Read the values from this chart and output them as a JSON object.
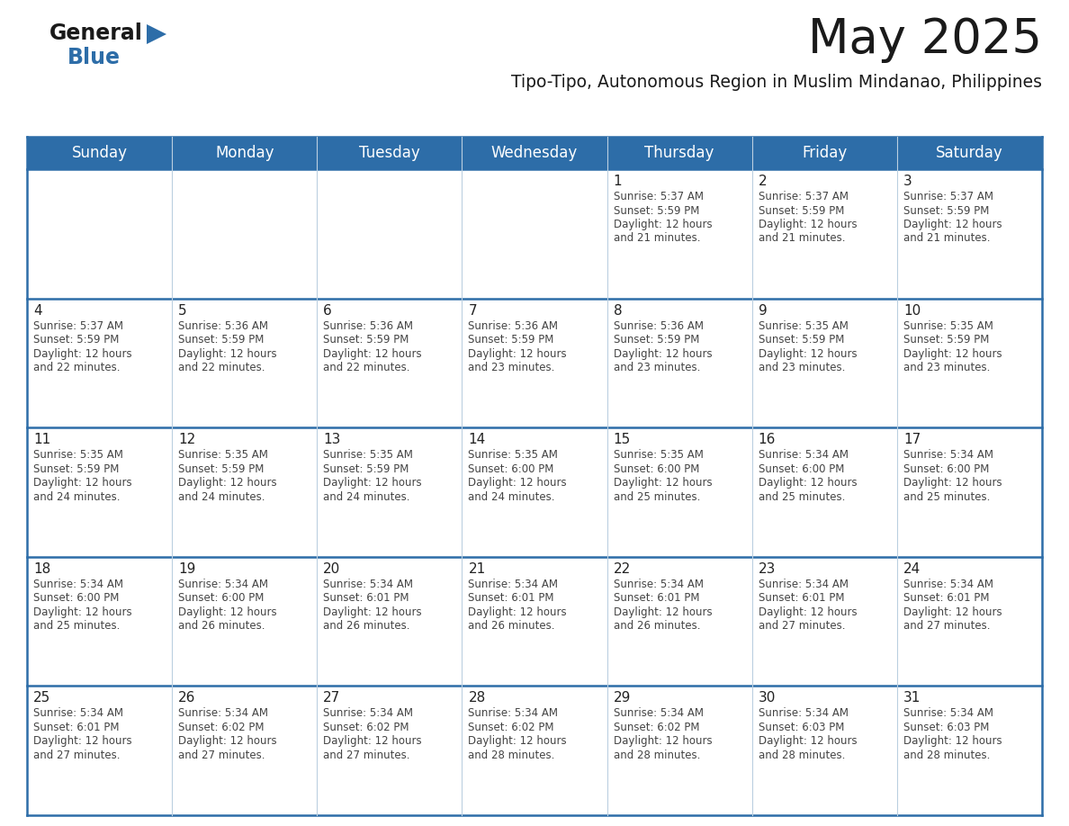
{
  "title": "May 2025",
  "subtitle": "Tipo-Tipo, Autonomous Region in Muslim Mindanao, Philippines",
  "days_of_week": [
    "Sunday",
    "Monday",
    "Tuesday",
    "Wednesday",
    "Thursday",
    "Friday",
    "Saturday"
  ],
  "header_bg_color": "#2D6DA8",
  "header_text_color": "#FFFFFF",
  "cell_bg_color": "#FFFFFF",
  "cell_bg_alt": "#F2F6FA",
  "day_number_color": "#222222",
  "info_text_color": "#444444",
  "border_color": "#2D6DA8",
  "grid_color": "#BBCFE0",
  "title_color": "#1a1a1a",
  "subtitle_color": "#1a1a1a",
  "logo_general_color": "#1a1a1a",
  "logo_blue_color": "#2D6DA8",
  "logo_triangle_color": "#2D6DA8",
  "calendar_data": [
    [
      {
        "day": "",
        "sunrise": "",
        "sunset": "",
        "daylight": ""
      },
      {
        "day": "",
        "sunrise": "",
        "sunset": "",
        "daylight": ""
      },
      {
        "day": "",
        "sunrise": "",
        "sunset": "",
        "daylight": ""
      },
      {
        "day": "",
        "sunrise": "",
        "sunset": "",
        "daylight": ""
      },
      {
        "day": "1",
        "sunrise": "5:37 AM",
        "sunset": "5:59 PM",
        "daylight": "12 hours and 21 minutes"
      },
      {
        "day": "2",
        "sunrise": "5:37 AM",
        "sunset": "5:59 PM",
        "daylight": "12 hours and 21 minutes"
      },
      {
        "day": "3",
        "sunrise": "5:37 AM",
        "sunset": "5:59 PM",
        "daylight": "12 hours and 21 minutes"
      }
    ],
    [
      {
        "day": "4",
        "sunrise": "5:37 AM",
        "sunset": "5:59 PM",
        "daylight": "12 hours and 22 minutes"
      },
      {
        "day": "5",
        "sunrise": "5:36 AM",
        "sunset": "5:59 PM",
        "daylight": "12 hours and 22 minutes"
      },
      {
        "day": "6",
        "sunrise": "5:36 AM",
        "sunset": "5:59 PM",
        "daylight": "12 hours and 22 minutes"
      },
      {
        "day": "7",
        "sunrise": "5:36 AM",
        "sunset": "5:59 PM",
        "daylight": "12 hours and 23 minutes"
      },
      {
        "day": "8",
        "sunrise": "5:36 AM",
        "sunset": "5:59 PM",
        "daylight": "12 hours and 23 minutes"
      },
      {
        "day": "9",
        "sunrise": "5:35 AM",
        "sunset": "5:59 PM",
        "daylight": "12 hours and 23 minutes"
      },
      {
        "day": "10",
        "sunrise": "5:35 AM",
        "sunset": "5:59 PM",
        "daylight": "12 hours and 23 minutes"
      }
    ],
    [
      {
        "day": "11",
        "sunrise": "5:35 AM",
        "sunset": "5:59 PM",
        "daylight": "12 hours and 24 minutes"
      },
      {
        "day": "12",
        "sunrise": "5:35 AM",
        "sunset": "5:59 PM",
        "daylight": "12 hours and 24 minutes"
      },
      {
        "day": "13",
        "sunrise": "5:35 AM",
        "sunset": "5:59 PM",
        "daylight": "12 hours and 24 minutes"
      },
      {
        "day": "14",
        "sunrise": "5:35 AM",
        "sunset": "6:00 PM",
        "daylight": "12 hours and 24 minutes"
      },
      {
        "day": "15",
        "sunrise": "5:35 AM",
        "sunset": "6:00 PM",
        "daylight": "12 hours and 25 minutes"
      },
      {
        "day": "16",
        "sunrise": "5:34 AM",
        "sunset": "6:00 PM",
        "daylight": "12 hours and 25 minutes"
      },
      {
        "day": "17",
        "sunrise": "5:34 AM",
        "sunset": "6:00 PM",
        "daylight": "12 hours and 25 minutes"
      }
    ],
    [
      {
        "day": "18",
        "sunrise": "5:34 AM",
        "sunset": "6:00 PM",
        "daylight": "12 hours and 25 minutes"
      },
      {
        "day": "19",
        "sunrise": "5:34 AM",
        "sunset": "6:00 PM",
        "daylight": "12 hours and 26 minutes"
      },
      {
        "day": "20",
        "sunrise": "5:34 AM",
        "sunset": "6:01 PM",
        "daylight": "12 hours and 26 minutes"
      },
      {
        "day": "21",
        "sunrise": "5:34 AM",
        "sunset": "6:01 PM",
        "daylight": "12 hours and 26 minutes"
      },
      {
        "day": "22",
        "sunrise": "5:34 AM",
        "sunset": "6:01 PM",
        "daylight": "12 hours and 26 minutes"
      },
      {
        "day": "23",
        "sunrise": "5:34 AM",
        "sunset": "6:01 PM",
        "daylight": "12 hours and 27 minutes"
      },
      {
        "day": "24",
        "sunrise": "5:34 AM",
        "sunset": "6:01 PM",
        "daylight": "12 hours and 27 minutes"
      }
    ],
    [
      {
        "day": "25",
        "sunrise": "5:34 AM",
        "sunset": "6:01 PM",
        "daylight": "12 hours and 27 minutes"
      },
      {
        "day": "26",
        "sunrise": "5:34 AM",
        "sunset": "6:02 PM",
        "daylight": "12 hours and 27 minutes"
      },
      {
        "day": "27",
        "sunrise": "5:34 AM",
        "sunset": "6:02 PM",
        "daylight": "12 hours and 27 minutes"
      },
      {
        "day": "28",
        "sunrise": "5:34 AM",
        "sunset": "6:02 PM",
        "daylight": "12 hours and 28 minutes"
      },
      {
        "day": "29",
        "sunrise": "5:34 AM",
        "sunset": "6:02 PM",
        "daylight": "12 hours and 28 minutes"
      },
      {
        "day": "30",
        "sunrise": "5:34 AM",
        "sunset": "6:03 PM",
        "daylight": "12 hours and 28 minutes"
      },
      {
        "day": "31",
        "sunrise": "5:34 AM",
        "sunset": "6:03 PM",
        "daylight": "12 hours and 28 minutes"
      }
    ]
  ]
}
